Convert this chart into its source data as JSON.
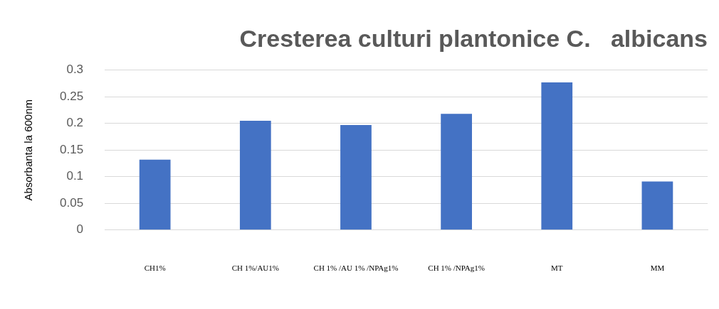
{
  "chart_data": {
    "type": "bar",
    "title": "Cresterea culturi plantonice C.   albicans",
    "ylabel": "Absorbanta la 600nm",
    "categories": [
      "CH1%",
      "CH 1%/AU1%",
      "CH 1% /AU 1% /NPAg1%",
      "CH 1% /NPAg1%",
      "MT",
      "MM"
    ],
    "values": [
      0.132,
      0.205,
      0.197,
      0.218,
      0.277,
      0.091
    ],
    "color": "#4472c4",
    "ylim": [
      0,
      0.3
    ],
    "yticks": [
      0,
      0.05,
      0.1,
      0.15,
      0.2,
      0.25,
      0.3
    ],
    "grid": "y"
  }
}
